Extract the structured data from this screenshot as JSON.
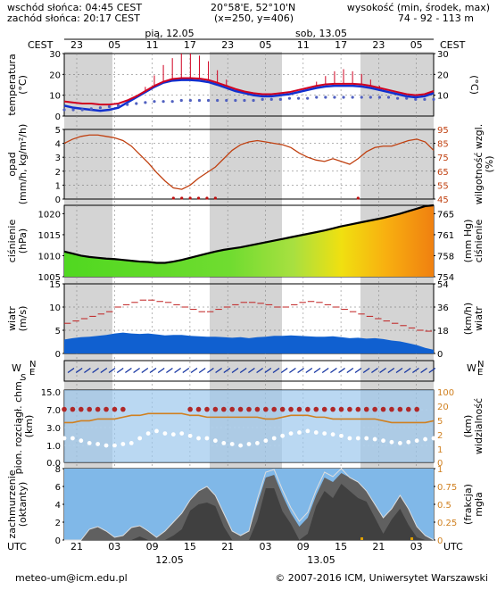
{
  "header": {
    "sunrise": "wschód słońca: 04:45 CEST",
    "sunset": "zachód słońca: 20:17 CEST",
    "coords": "20°58'E, 52°10'N",
    "grid": "(x=250, y=406)",
    "altitude_label": "wysokość (min, środek, max)",
    "altitude_values": "74 - 92 - 113 m"
  },
  "top_axis": {
    "day1": "pią, 12.05",
    "day2": "sob, 13.05",
    "tz_left": "CEST",
    "tz_right": "CEST",
    "hours": [
      "23",
      "05",
      "11",
      "17",
      "23",
      "05",
      "11",
      "17",
      "23",
      "05"
    ]
  },
  "bottom_axis": {
    "tz_left": "UTC",
    "tz_right": "UTC",
    "hours": [
      "21",
      "03",
      "09",
      "15",
      "21",
      "03",
      "09",
      "15",
      "21",
      "03"
    ],
    "date1": "12.05",
    "date2": "13.05"
  },
  "footer": {
    "email": "meteo-um@icm.edu.pl",
    "copyright": "© 2007-2016 ICM, Uniwersytet Warszawski"
  },
  "colors": {
    "night_band": "#d4d4d4",
    "temperature": "#d00020",
    "temp_surface": "#1030d0",
    "dewpoint": "#5060c0",
    "humidity": "#c04010",
    "pressure": "#000000",
    "wind": "#1060d0",
    "cloud_sky": "#80b8e8",
    "cloud_dark": "#505050",
    "visibility": "#d08020"
  },
  "chart_data": [
    {
      "type": "line",
      "panel": "temperature",
      "left_label": "temperatura (°C)",
      "right_label": "(°C)",
      "ylim": [
        0,
        30
      ],
      "left_ticks": [
        "30",
        "20",
        "10",
        "0"
      ],
      "right_ticks": [
        "30",
        "20",
        "10"
      ],
      "x_hours_utc_from": "21",
      "series": [
        {
          "values": [
            7,
            6.5,
            6,
            6,
            5.5,
            5.5,
            6,
            7.5,
            9.5,
            12,
            14.5,
            16.5,
            17.8,
            18.2,
            18.2,
            18,
            17.3,
            16,
            14.5,
            13,
            11.8,
            11,
            10.5,
            10.5,
            11,
            11.5,
            12.5,
            13.5,
            14.5,
            15.2,
            15.5,
            15.5,
            15.5,
            15.2,
            14.5,
            13.5,
            12.5,
            11.5,
            10.5,
            10,
            10.5,
            12
          ]
        },
        {
          "values": [
            5,
            4,
            3.5,
            3,
            2.5,
            3,
            4,
            6.5,
            9,
            11.5,
            14,
            16,
            17,
            17.3,
            17.3,
            17,
            16.3,
            15,
            13.5,
            12,
            11,
            10,
            9.5,
            9.5,
            10,
            10.5,
            11.5,
            12.5,
            13.5,
            14.2,
            14.5,
            14.5,
            14.5,
            14.2,
            13.5,
            12.5,
            11.5,
            10.5,
            9.5,
            9,
            9.5,
            11
          ]
        },
        {
          "values": [
            3,
            3,
            3,
            3.5,
            4,
            4.5,
            5,
            5.5,
            6,
            6.5,
            7,
            7,
            7,
            7.5,
            7.5,
            7.5,
            7.5,
            7.5,
            7.5,
            7.5,
            7.5,
            7.5,
            8,
            8,
            8,
            8.5,
            8.5,
            8.5,
            9,
            9,
            9,
            9,
            9,
            9,
            9,
            9,
            9,
            8.5,
            8.5,
            8,
            8,
            8
          ]
        },
        {
          "values": [
            0,
            0,
            0,
            0,
            0,
            0,
            0,
            0,
            0,
            2,
            5,
            8,
            10,
            12,
            12,
            11,
            9,
            6,
            3,
            0,
            0,
            0,
            0,
            0,
            0,
            0,
            0,
            0,
            2,
            4,
            6,
            7,
            6,
            5,
            3,
            1,
            0,
            0,
            0,
            0,
            0,
            0
          ]
        }
      ]
    },
    {
      "type": "line",
      "panel": "precipitation_humidity",
      "left_label": "opad (mm/h, kg/m²/h)",
      "right_label": "wilgotność wzgl. (%)",
      "ylim_left": [
        0,
        5
      ],
      "ylim_right": [
        45,
        95
      ],
      "left_ticks": [
        "5",
        "4",
        "3",
        "2",
        "1",
        "0"
      ],
      "right_ticks": [
        "95",
        "85",
        "75",
        "65",
        "55",
        "45"
      ],
      "series": [
        {
          "values": [
            85,
            88,
            90,
            91,
            91,
            90,
            89,
            87,
            83,
            77,
            71,
            64,
            58,
            53,
            52,
            55,
            60,
            64,
            68,
            74,
            80,
            84,
            86,
            87,
            86,
            85,
            84,
            82,
            78,
            75,
            73,
            72,
            74,
            72,
            70,
            74,
            79,
            82,
            83,
            83,
            85,
            87,
            88,
            86,
            80
          ]
        },
        {
          "values": [
            0,
            0,
            0,
            0,
            0,
            0,
            0,
            0,
            0,
            0,
            0,
            0,
            0,
            0.05,
            0.05,
            0.05,
            0.05,
            0.05,
            0.05,
            0,
            0,
            0,
            0,
            0,
            0,
            0,
            0,
            0,
            0,
            0,
            0,
            0,
            0,
            0,
            0,
            0.05,
            0,
            0,
            0,
            0,
            0,
            0,
            0,
            0,
            0
          ]
        }
      ]
    },
    {
      "type": "area",
      "panel": "pressure",
      "left_label": "ciśnienie (hPa)",
      "right_label": "ciśnienie (mm Hg)",
      "ylim": [
        1005,
        1022
      ],
      "left_ticks": [
        "1020",
        "1015",
        "1010",
        "1005"
      ],
      "right_ticks": [
        "765",
        "761",
        "758",
        "754"
      ],
      "series": [
        {
          "values": [
            1011,
            1010.5,
            1010,
            1009.7,
            1009.5,
            1009.3,
            1009.2,
            1009,
            1008.8,
            1008.6,
            1008.5,
            1008.3,
            1008.3,
            1008.6,
            1009,
            1009.5,
            1010,
            1010.5,
            1011,
            1011.4,
            1011.7,
            1012,
            1012.4,
            1012.8,
            1013.2,
            1013.6,
            1014,
            1014.4,
            1014.8,
            1015.2,
            1015.6,
            1016,
            1016.5,
            1017,
            1017.4,
            1017.8,
            1018.2,
            1018.6,
            1019,
            1019.5,
            1020,
            1020.6,
            1021.2,
            1021.8,
            1022
          ]
        }
      ]
    },
    {
      "type": "area",
      "panel": "wind",
      "left_label": "wiatr (m/s)",
      "right_label": "(km/h) wiatr",
      "ylim": [
        0,
        15
      ],
      "left_ticks": [
        "15",
        "10",
        "5",
        "0"
      ],
      "right_ticks": [
        "54",
        "36",
        "18",
        "0"
      ],
      "series": [
        {
          "values": [
            3,
            3.3,
            3.5,
            3.6,
            3.8,
            4,
            4.3,
            4.5,
            4.3,
            4.2,
            4.3,
            4.1,
            3.9,
            4,
            4,
            3.8,
            3.7,
            3.6,
            3.6,
            3.5,
            3.4,
            3.5,
            3.3,
            3.5,
            3.6,
            3.8,
            3.8,
            3.9,
            3.8,
            3.7,
            3.6,
            3.6,
            3.7,
            3.5,
            3.3,
            3.4,
            3.2,
            3.3,
            3.1,
            2.8,
            2.6,
            2.2,
            1.8,
            1.2,
            0.8
          ]
        },
        {
          "values": [
            6.5,
            7,
            7.5,
            8,
            8.5,
            9,
            10,
            10.5,
            11,
            11.5,
            11.5,
            11.2,
            11,
            10.5,
            10,
            9.5,
            9,
            9,
            9.5,
            10,
            10.5,
            11,
            11,
            10.8,
            10.5,
            10,
            10,
            10.5,
            11,
            11.2,
            11,
            10.5,
            10,
            9.5,
            9,
            8.5,
            8,
            7.5,
            7,
            6.5,
            6,
            5.5,
            5,
            4.8,
            4.5
          ]
        }
      ]
    },
    {
      "type": "line",
      "panel": "wind_direction",
      "left_label": "W S N E",
      "right_label": "W S N E"
    },
    {
      "type": "scatter",
      "panel": "cloud_base_visibility",
      "left_label": "pion. rozciągł. chm. (km)",
      "right_label": "(km) widzialność",
      "ylim_left": [
        0,
        15
      ],
      "ylim_right": [
        0,
        100
      ],
      "left_ticks": [
        "15.0",
        "7.0",
        "3.0",
        "1.0",
        "0.0"
      ],
      "right_ticks": [
        "100",
        "20",
        "5",
        "2",
        "1",
        "0"
      ],
      "series": [
        {
          "values": [
            11,
            11,
            11,
            11,
            11,
            11,
            11,
            11,
            null,
            null,
            null,
            null,
            null,
            null,
            null,
            11,
            11,
            11,
            11,
            11,
            11,
            11,
            11,
            11,
            11,
            11,
            11,
            11,
            11,
            11,
            11,
            11,
            11,
            11,
            11,
            11,
            11,
            11,
            11,
            11,
            11,
            11,
            11,
            null,
            null
          ]
        },
        {
          "values": [
            22,
            22,
            23,
            23,
            24,
            24,
            24,
            25,
            26,
            26,
            27,
            27,
            27,
            27,
            27,
            26,
            26,
            25,
            25,
            25,
            25,
            25,
            25,
            25,
            24,
            24,
            25,
            26,
            26,
            26,
            25,
            25,
            24,
            24,
            24,
            24,
            24,
            24,
            23,
            22,
            22,
            22,
            22,
            22,
            23
          ]
        }
      ]
    },
    {
      "type": "area",
      "panel": "clouds_fog",
      "left_label": "zachmurzenie (oktanty)",
      "right_label": "(frakcja) mgła",
      "ylim_left": [
        0,
        8
      ],
      "ylim_right": [
        0,
        1
      ],
      "left_ticks": [
        "8",
        "6",
        "4",
        "2",
        "0"
      ],
      "right_ticks": [
        "1",
        "0.75",
        "0.5",
        "0.25",
        "0"
      ],
      "series": [
        {
          "values": [
            0,
            0,
            0,
            1.2,
            1.5,
            1,
            0.3,
            0.5,
            1.4,
            1.6,
            1,
            0.3,
            1,
            2,
            3,
            4.5,
            5.5,
            6,
            5,
            3,
            1,
            0.5,
            1,
            4,
            7,
            7.3,
            5,
            3,
            1.5,
            2.5,
            5,
            7,
            6.5,
            7.5,
            7,
            6.5,
            5.5,
            4,
            2.5,
            3.5,
            5,
            3.5,
            1.5,
            0.5,
            0
          ]
        },
        {
          "values": [
            0,
            0,
            0,
            0,
            0,
            0,
            0,
            0,
            0,
            0,
            0,
            0,
            0,
            0,
            0,
            0,
            0,
            0,
            0,
            0,
            0,
            0,
            0,
            0,
            0,
            0,
            0,
            0,
            0,
            0,
            0,
            0,
            0,
            0,
            0,
            0,
            0,
            0,
            0,
            0,
            0,
            0,
            0,
            0,
            0
          ]
        }
      ]
    }
  ]
}
